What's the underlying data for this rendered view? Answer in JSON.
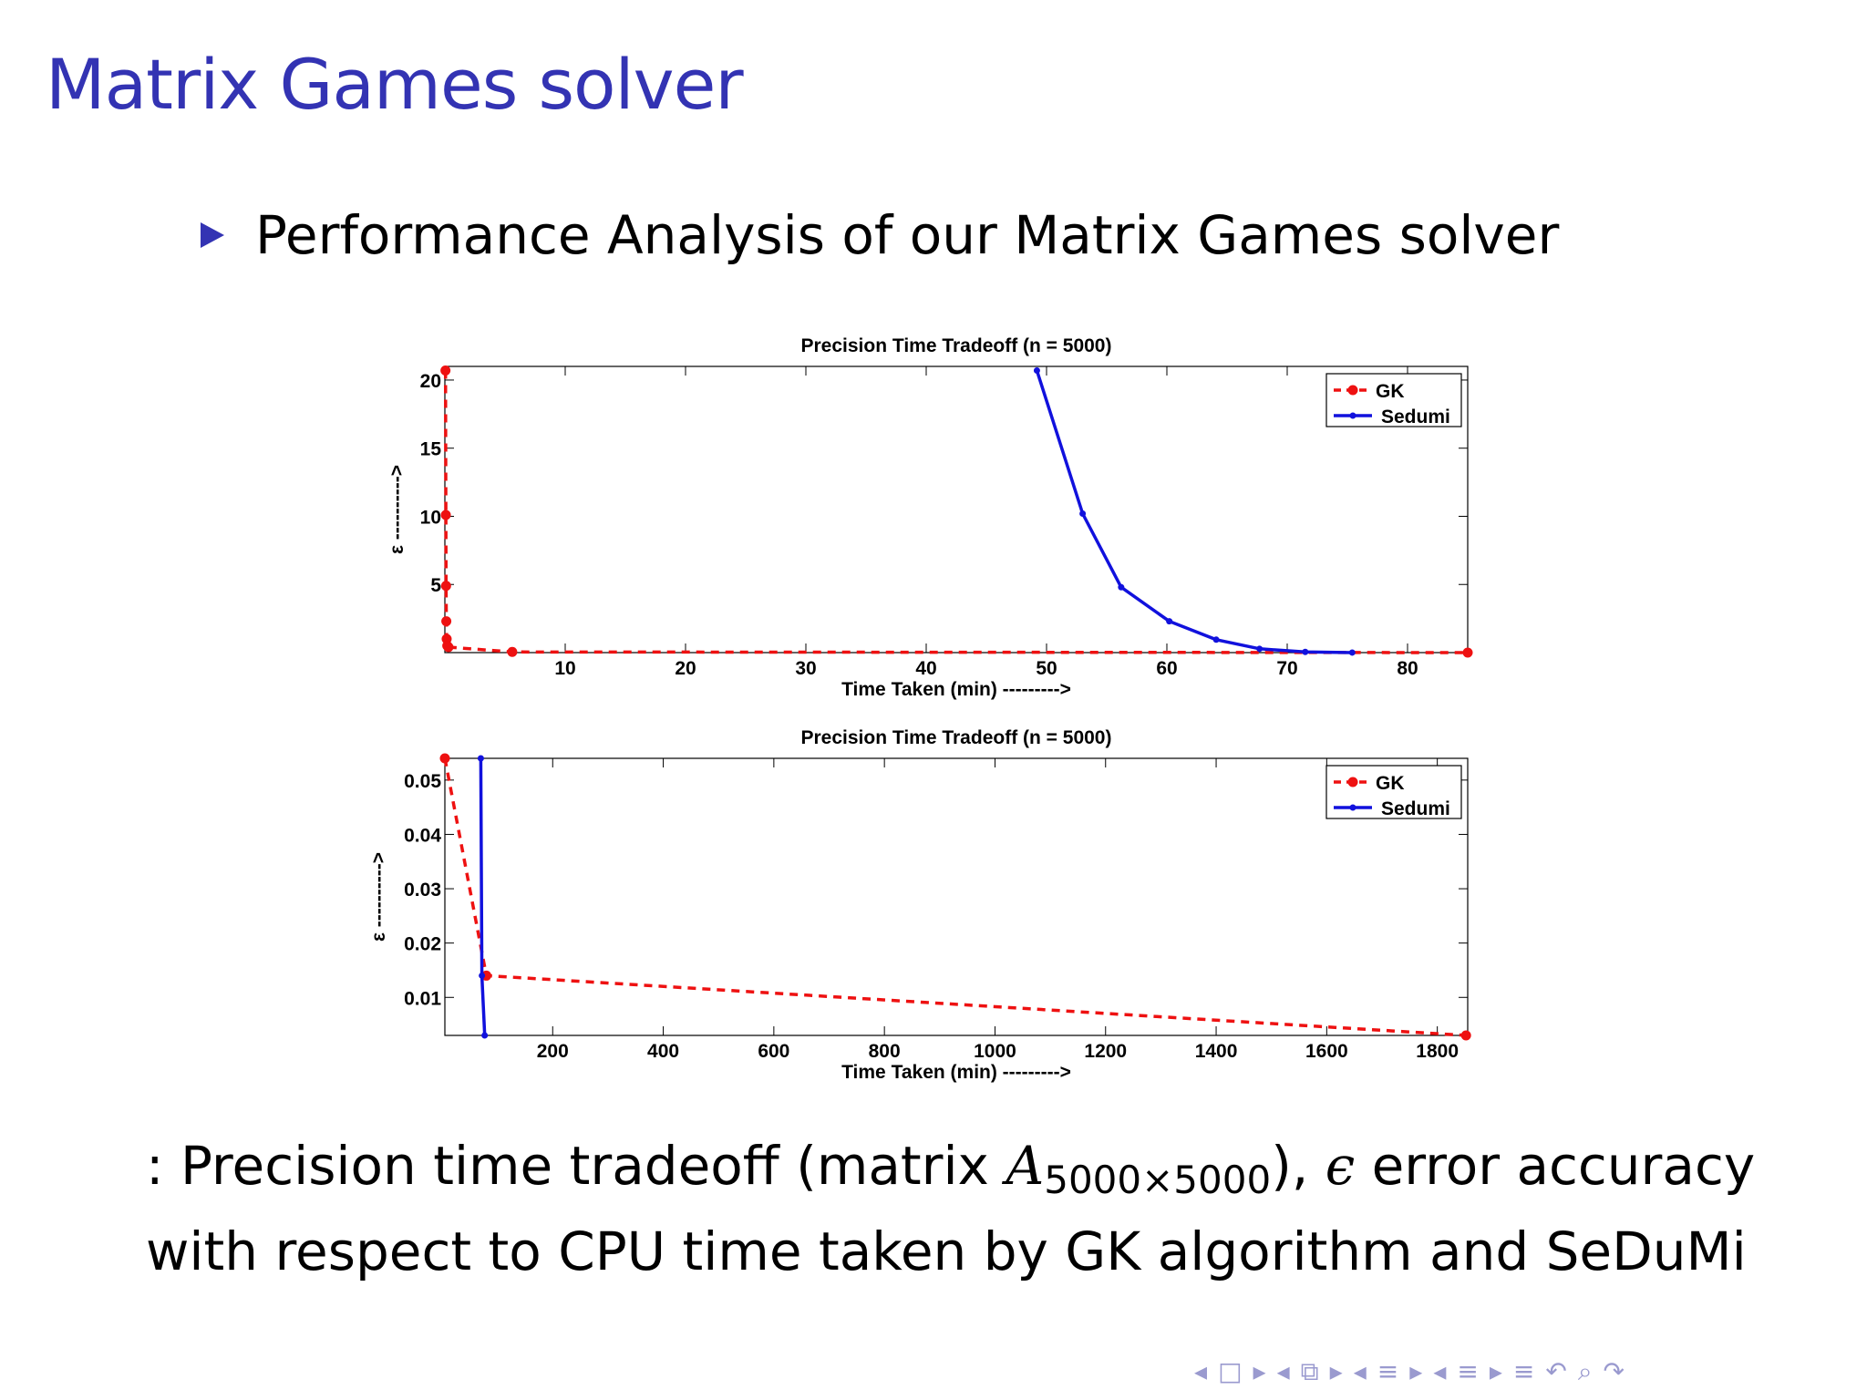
{
  "slide": {
    "title": "Matrix Games solver",
    "bullet": "Performance Analysis of our Matrix Games solver",
    "caption_prefix": ": Precision time tradeoff (matrix ",
    "caption_matrix": "A",
    "caption_subscript": "5000×5000",
    "caption_middle": "), ",
    "caption_epsilon": "ϵ",
    "caption_rest": " error accuracy with respect to CPU time taken by GK algorithm and SeDuMi"
  },
  "nav": {
    "icons": [
      "nav-left-icon",
      "frame-icon",
      "nav-right-icon",
      "nav-left-icon",
      "subsection-icon",
      "nav-right-icon",
      "nav-left-icon",
      "section-icon",
      "nav-right-icon",
      "nav-left-icon",
      "toc-icon",
      "nav-right-icon",
      "align-icon",
      "undo-icon",
      "search-icon",
      "redo-icon"
    ],
    "glyphs": [
      "◂",
      "□",
      "▸",
      "◂",
      "⧉",
      "▸",
      "◂",
      "≡",
      "▸",
      "◂",
      "≡",
      "▸",
      "≡",
      "↶",
      "⌕",
      "↷"
    ]
  },
  "colors": {
    "title": "#3333b3",
    "gk": "#ee1111",
    "sedumi": "#1111dd"
  },
  "chart_data": [
    {
      "type": "line",
      "title": "Precision Time Tradeoff (n = 5000)",
      "xlabel": "Time Taken (min) --------->",
      "ylabel": "ε ---------->",
      "xlim": [
        0,
        85
      ],
      "ylim": [
        0,
        21
      ],
      "xticks": [
        10,
        20,
        30,
        40,
        50,
        60,
        70,
        80
      ],
      "yticks": [
        5,
        10,
        15,
        20
      ],
      "grid": false,
      "legend_position": "top-right",
      "series": [
        {
          "name": "GK",
          "style": "dashed-dot",
          "color": "#ee1111",
          "x": [
            0.05,
            0.08,
            0.1,
            0.12,
            0.15,
            0.2,
            0.3,
            5.6,
            85
          ],
          "y": [
            20.7,
            10.1,
            4.9,
            2.3,
            1.0,
            0.5,
            0.4,
            0.05,
            0.003
          ]
        },
        {
          "name": "Sedumi",
          "style": "solid-star",
          "color": "#1111dd",
          "x": [
            49.2,
            53.0,
            56.2,
            60.2,
            64.1,
            67.7,
            71.5,
            75.4
          ],
          "y": [
            20.7,
            10.2,
            4.8,
            2.3,
            0.95,
            0.28,
            0.05,
            0.003
          ]
        }
      ]
    },
    {
      "type": "line",
      "title": "Precision Time Tradeoff (n = 5000)",
      "xlabel": "Time Taken (min) --------->",
      "ylabel": "ε ---------->",
      "xlim": [
        5,
        1855
      ],
      "ylim": [
        0.003,
        0.054
      ],
      "xticks": [
        200,
        400,
        600,
        800,
        1000,
        1200,
        1400,
        1600,
        1800
      ],
      "yticks": [
        0.01,
        0.02,
        0.03,
        0.04,
        0.05
      ],
      "grid": false,
      "legend_position": "top-right",
      "series": [
        {
          "name": "GK",
          "style": "dashed-dot",
          "color": "#ee1111",
          "x": [
            5,
            80,
            1852
          ],
          "y": [
            0.054,
            0.014,
            0.003
          ]
        },
        {
          "name": "Sedumi",
          "style": "solid-star",
          "color": "#1111dd",
          "x": [
            70,
            72,
            77
          ],
          "y": [
            0.054,
            0.014,
            0.003
          ]
        }
      ]
    }
  ]
}
